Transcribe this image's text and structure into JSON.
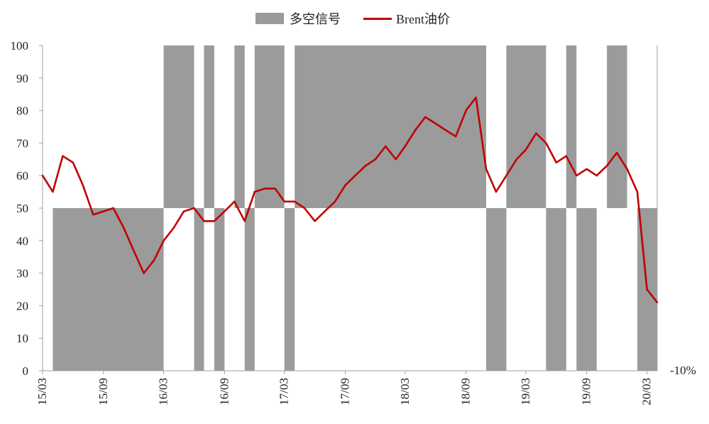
{
  "chart_data": {
    "type": "area-line",
    "title": "",
    "legend": {
      "position": "top-center",
      "items": [
        {
          "name": "多空信号",
          "kind": "area",
          "color": "#9b9b9b"
        },
        {
          "name": "Brent油价",
          "kind": "line",
          "color": "#c00000"
        }
      ]
    },
    "y_axis": {
      "min": 0,
      "max": 100,
      "ticks": [
        0,
        10,
        20,
        30,
        40,
        50,
        60,
        70,
        80,
        90,
        100
      ]
    },
    "x_axis": {
      "tick_labels": [
        "15/03",
        "15/09",
        "16/03",
        "16/09",
        "17/03",
        "17/09",
        "18/03",
        "18/09",
        "19/03",
        "19/09",
        "20/03"
      ]
    },
    "extra_label": "-10%",
    "signal_series": {
      "name": "多空信号",
      "baseline": 50,
      "long_value": 100,
      "short_value": 0,
      "segments": [
        {
          "start": "2015-03",
          "end": "2015-04",
          "value": 50
        },
        {
          "start": "2015-04",
          "end": "2016-03",
          "value": 0
        },
        {
          "start": "2016-03",
          "end": "2016-06",
          "value": 100
        },
        {
          "start": "2016-06",
          "end": "2016-07",
          "value": 0
        },
        {
          "start": "2016-07",
          "end": "2016-08",
          "value": 100
        },
        {
          "start": "2016-08",
          "end": "2016-09",
          "value": 0
        },
        {
          "start": "2016-09",
          "end": "2016-10",
          "value": 50
        },
        {
          "start": "2016-10",
          "end": "2016-11",
          "value": 100
        },
        {
          "start": "2016-11",
          "end": "2016-12",
          "value": 0
        },
        {
          "start": "2016-12",
          "end": "2017-03",
          "value": 100
        },
        {
          "start": "2017-03",
          "end": "2017-04",
          "value": 0
        },
        {
          "start": "2017-04",
          "end": "2018-11",
          "value": 100
        },
        {
          "start": "2018-11",
          "end": "2019-01",
          "value": 0
        },
        {
          "start": "2019-01",
          "end": "2019-05",
          "value": 100
        },
        {
          "start": "2019-05",
          "end": "2019-07",
          "value": 0
        },
        {
          "start": "2019-07",
          "end": "2019-08",
          "value": 100
        },
        {
          "start": "2019-08",
          "end": "2019-10",
          "value": 0
        },
        {
          "start": "2019-10",
          "end": "2019-11",
          "value": 50
        },
        {
          "start": "2019-11",
          "end": "2020-01",
          "value": 100
        },
        {
          "start": "2020-01",
          "end": "2020-02",
          "value": 50
        },
        {
          "start": "2020-02",
          "end": "2020-04",
          "value": 0
        }
      ]
    },
    "price_series": {
      "name": "Brent油价",
      "x": [
        "2015-03",
        "2015-04",
        "2015-05",
        "2015-06",
        "2015-07",
        "2015-08",
        "2015-09",
        "2015-10",
        "2015-11",
        "2015-12",
        "2016-01",
        "2016-02",
        "2016-03",
        "2016-04",
        "2016-05",
        "2016-06",
        "2016-07",
        "2016-08",
        "2016-09",
        "2016-10",
        "2016-11",
        "2016-12",
        "2017-01",
        "2017-02",
        "2017-03",
        "2017-04",
        "2017-05",
        "2017-06",
        "2017-07",
        "2017-08",
        "2017-09",
        "2017-10",
        "2017-11",
        "2017-12",
        "2018-01",
        "2018-02",
        "2018-03",
        "2018-04",
        "2018-05",
        "2018-06",
        "2018-07",
        "2018-08",
        "2018-09",
        "2018-10",
        "2018-11",
        "2018-12",
        "2019-01",
        "2019-02",
        "2019-03",
        "2019-04",
        "2019-05",
        "2019-06",
        "2019-07",
        "2019-08",
        "2019-09",
        "2019-10",
        "2019-11",
        "2019-12",
        "2020-01",
        "2020-02",
        "2020-03",
        "2020-04"
      ],
      "values": [
        60,
        55,
        66,
        64,
        57,
        48,
        49,
        50,
        44,
        37,
        30,
        34,
        40,
        44,
        49,
        50,
        46,
        46,
        49,
        52,
        46,
        55,
        56,
        56,
        52,
        52,
        50,
        46,
        49,
        52,
        57,
        60,
        63,
        65,
        69,
        65,
        69,
        74,
        78,
        76,
        74,
        72,
        80,
        84,
        62,
        55,
        60,
        65,
        68,
        73,
        70,
        64,
        66,
        60,
        62,
        60,
        63,
        67,
        62,
        55,
        25,
        21
      ]
    }
  }
}
